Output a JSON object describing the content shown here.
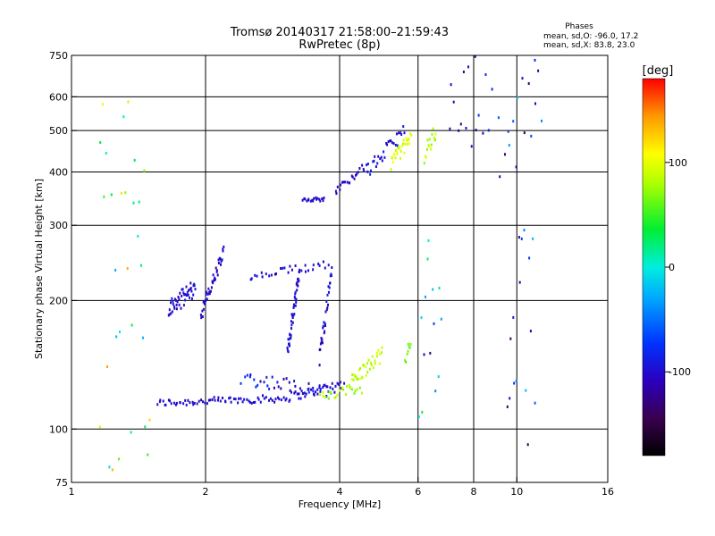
{
  "title_line1": "Tromsø 20140317 21:58:00–21:59:43",
  "title_line2": "RwPretec (8p)",
  "phase_box": {
    "heading": "Phases",
    "line1": "mean, sd,O: -96.0, 17.2",
    "line2": "mean, sd,X: 83.8, 23.0"
  },
  "colorbar": {
    "label": "[deg]",
    "range": [
      -180,
      180
    ],
    "tick_labels": [
      {
        "v": 100,
        "text": "100"
      },
      {
        "v": 0,
        "text": "0"
      },
      {
        "v": -100,
        "text": "-100"
      }
    ]
  },
  "chart_data": {
    "type": "scatter",
    "xscale": "log",
    "yscale": "log",
    "xlabel": "Frequency [MHz]",
    "ylabel": "Stationary phase Virtual Height [km]",
    "xlim": [
      1,
      16
    ],
    "ylim": [
      75,
      750
    ],
    "xticks": [
      {
        "v": 1,
        "text": "1"
      },
      {
        "v": 2,
        "text": "2"
      },
      {
        "v": 4,
        "text": "4"
      },
      {
        "v": 6,
        "text": "6"
      },
      {
        "v": 8,
        "text": "8"
      },
      {
        "v": 10,
        "text": "10"
      },
      {
        "v": 16,
        "text": "16"
      }
    ],
    "yticks": [
      {
        "v": 75,
        "text": "75"
      },
      {
        "v": 100,
        "text": "100"
      },
      {
        "v": 200,
        "text": "200"
      },
      {
        "v": 300,
        "text": "300"
      },
      {
        "v": 400,
        "text": "400"
      },
      {
        "v": 500,
        "text": "500"
      },
      {
        "v": 600,
        "text": "600"
      },
      {
        "v": 750,
        "text": "750"
      }
    ],
    "grid_x": [
      2,
      4,
      6,
      8,
      10
    ],
    "grid_y": [
      100,
      200,
      300,
      400,
      500,
      600
    ],
    "traces": [
      {
        "f0": 1.55,
        "f1": 3.0,
        "h0": 115,
        "h1": 118,
        "n": 70,
        "jit": 0.02,
        "phase": -100,
        "ps": 12
      },
      {
        "f0": 3.0,
        "f1": 4.1,
        "h0": 118,
        "h1": 128,
        "n": 35,
        "jit": 0.025,
        "phase": -100,
        "ps": 12
      },
      {
        "f0": 2.4,
        "f1": 3.9,
        "h0": 132,
        "h1": 122,
        "n": 40,
        "jit": 0.04,
        "phase": -95,
        "ps": 25
      },
      {
        "f0": 3.6,
        "f1": 4.5,
        "h0": 118,
        "h1": 125,
        "n": 22,
        "jit": 0.03,
        "phase": 80,
        "ps": 15
      },
      {
        "f0": 4.2,
        "f1": 5.0,
        "h0": 128,
        "h1": 150,
        "n": 35,
        "jit": 0.04,
        "phase": 85,
        "ps": 15
      },
      {
        "f0": 3.05,
        "f1": 3.25,
        "h0": 150,
        "h1": 235,
        "n": 45,
        "jit": 0.05,
        "phase": -100,
        "ps": 14
      },
      {
        "f0": 3.6,
        "f1": 3.85,
        "h0": 145,
        "h1": 240,
        "n": 30,
        "jit": 0.05,
        "phase": -100,
        "ps": 14
      },
      {
        "f0": 1.65,
        "f1": 1.9,
        "h0": 190,
        "h1": 215,
        "n": 45,
        "jit": 0.05,
        "phase": -100,
        "ps": 14
      },
      {
        "f0": 1.95,
        "f1": 2.2,
        "h0": 185,
        "h1": 260,
        "n": 40,
        "jit": 0.04,
        "phase": -100,
        "ps": 14
      },
      {
        "f0": 2.5,
        "f1": 3.8,
        "h0": 225,
        "h1": 245,
        "n": 30,
        "jit": 0.025,
        "phase": -100,
        "ps": 12
      },
      {
        "f0": 3.3,
        "f1": 3.7,
        "h0": 345,
        "h1": 345,
        "n": 18,
        "jit": 0.01,
        "phase": -100,
        "ps": 8
      },
      {
        "f0": 3.9,
        "f1": 4.6,
        "h0": 360,
        "h1": 415,
        "n": 22,
        "jit": 0.02,
        "phase": -100,
        "ps": 10
      },
      {
        "f0": 4.6,
        "f1": 5.6,
        "h0": 400,
        "h1": 500,
        "n": 30,
        "jit": 0.04,
        "phase": -95,
        "ps": 15
      },
      {
        "f0": 5.2,
        "f1": 5.8,
        "h0": 420,
        "h1": 480,
        "n": 28,
        "jit": 0.04,
        "phase": 95,
        "ps": 15
      },
      {
        "f0": 6.2,
        "f1": 6.6,
        "h0": 440,
        "h1": 500,
        "n": 16,
        "jit": 0.05,
        "phase": 85,
        "ps": 25
      },
      {
        "f0": 5.6,
        "f1": 5.8,
        "h0": 145,
        "h1": 165,
        "n": 8,
        "jit": 0.04,
        "phase": 60,
        "ps": 10
      },
      {
        "f0": 7.0,
        "f1": 8.8,
        "h0": 520,
        "h1": 650,
        "n": 16,
        "jit": 0.25,
        "phase": -100,
        "ps": 30
      },
      {
        "f0": 9.0,
        "f1": 11.5,
        "h0": 420,
        "h1": 640,
        "n": 16,
        "jit": 0.25,
        "phase": -80,
        "ps": 70
      },
      {
        "f0": 1.15,
        "f1": 1.5,
        "h0": 80,
        "h1": 620,
        "n": 30,
        "jit": 0.0,
        "phase": 60,
        "ps": 90
      },
      {
        "f0": 6.0,
        "f1": 6.8,
        "h0": 105,
        "h1": 280,
        "n": 14,
        "jit": 0.0,
        "phase": -40,
        "ps": 90
      },
      {
        "f0": 9.5,
        "f1": 11.0,
        "h0": 90,
        "h1": 300,
        "n": 16,
        "jit": 0.0,
        "phase": -80,
        "ps": 70
      }
    ]
  }
}
